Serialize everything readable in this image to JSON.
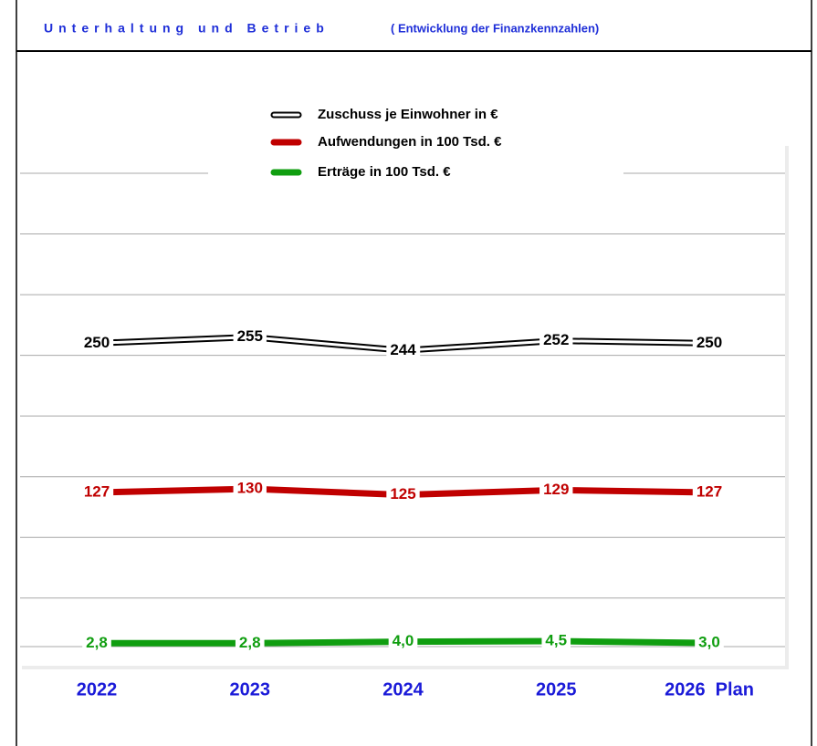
{
  "chart_data": {
    "type": "line",
    "title": "Unterhaltung und Betrieb",
    "subtitle": "( Entwicklung der Finanzkennzahlen)",
    "categories": [
      "2022",
      "2023",
      "2024",
      "2025",
      "2026  Plan"
    ],
    "ylim": [
      0,
      390
    ],
    "yticks": [
      0,
      40,
      90,
      140,
      190,
      240,
      290,
      340,
      390
    ],
    "grid": true,
    "legend": "top",
    "series": [
      {
        "name": "Zuschuss je Einwohner  in €",
        "color": "#000000",
        "values": [
          250,
          255,
          244,
          252,
          250
        ]
      },
      {
        "name": "Aufwendungen in 100 Tsd. €",
        "color": "#c00000",
        "values": [
          127,
          130,
          125,
          129,
          127
        ]
      },
      {
        "name": "Erträge in 100 Tsd. €",
        "color": "#109e10",
        "values": [
          2.8,
          2.8,
          4.0,
          4.5,
          3.0
        ],
        "value_labels": [
          "2,8",
          "2,8",
          "4,0",
          "4,5",
          "3,0"
        ]
      }
    ]
  }
}
